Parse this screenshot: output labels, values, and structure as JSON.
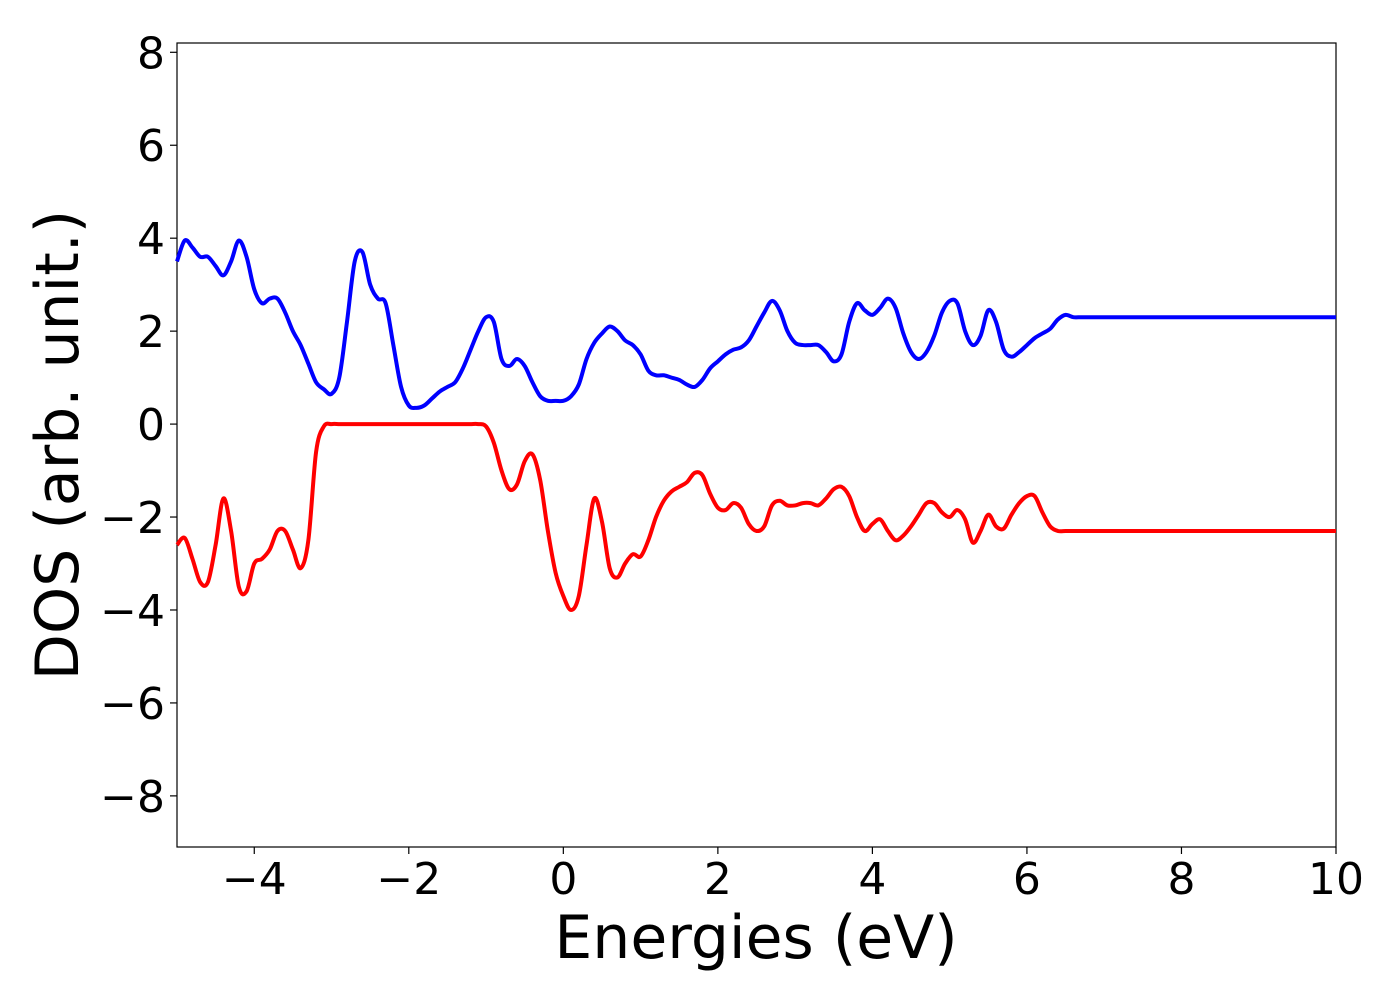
{
  "chart_data": {
    "type": "line",
    "title": "",
    "xlabel": "Energies (eV)",
    "ylabel": "DOS (arb. unit.)",
    "xlim": [
      -5,
      10
    ],
    "ylim": [
      -9.1,
      8.2
    ],
    "xticks": [
      -4,
      -2,
      0,
      2,
      4,
      6,
      8,
      10
    ],
    "yticks": [
      -8,
      -6,
      -4,
      -2,
      0,
      2,
      4,
      6,
      8
    ],
    "grid": false,
    "legend": "none",
    "series": [
      {
        "color": "#0000ff",
        "x": [
          -5.0,
          -4.9,
          -4.8,
          -4.7,
          -4.6,
          -4.5,
          -4.4,
          -4.3,
          -4.2,
          -4.1,
          -4.0,
          -3.9,
          -3.8,
          -3.7,
          -3.6,
          -3.5,
          -3.4,
          -3.3,
          -3.2,
          -3.1,
          -3.0,
          -2.9,
          -2.8,
          -2.7,
          -2.6,
          -2.5,
          -2.4,
          -2.3,
          -2.2,
          -2.1,
          -2.0,
          -1.9,
          -1.8,
          -1.7,
          -1.6,
          -1.5,
          -1.4,
          -1.3,
          -1.2,
          -1.1,
          -1.0,
          -0.9,
          -0.8,
          -0.7,
          -0.6,
          -0.5,
          -0.4,
          -0.3,
          -0.2,
          -0.1,
          0.0,
          0.1,
          0.2,
          0.3,
          0.4,
          0.5,
          0.6,
          0.7,
          0.8,
          0.9,
          1.0,
          1.1,
          1.2,
          1.3,
          1.4,
          1.5,
          1.6,
          1.7,
          1.8,
          1.9,
          2.0,
          2.1,
          2.2,
          2.3,
          2.4,
          2.5,
          2.6,
          2.7,
          2.8,
          2.9,
          3.0,
          3.1,
          3.2,
          3.3,
          3.4,
          3.5,
          3.6,
          3.7,
          3.8,
          3.9,
          4.0,
          4.1,
          4.2,
          4.3,
          4.4,
          4.5,
          4.6,
          4.7,
          4.8,
          4.9,
          5.0,
          5.1,
          5.2,
          5.3,
          5.4,
          5.5,
          5.6,
          5.7,
          5.8,
          5.9,
          6.0,
          6.1,
          6.2,
          6.3,
          6.4,
          6.5,
          6.6,
          6.7,
          6.8,
          6.9,
          7.0,
          7.1,
          7.2,
          7.3,
          7.4,
          7.5,
          7.6,
          7.7,
          7.8,
          7.9,
          8.0,
          8.1,
          8.2,
          8.3,
          8.4,
          8.5,
          8.6,
          8.7,
          8.8,
          8.9,
          9.0,
          9.1,
          9.2,
          9.3,
          9.4,
          9.5,
          9.6,
          9.7,
          9.8,
          9.9,
          10.0
        ],
        "values": [
          3.5,
          3.95,
          3.8,
          3.6,
          3.6,
          3.4,
          3.2,
          3.5,
          3.95,
          3.6,
          2.9,
          2.6,
          2.7,
          2.7,
          2.4,
          2.0,
          1.7,
          1.3,
          0.9,
          0.75,
          0.65,
          1.0,
          2.2,
          3.5,
          3.7,
          3.0,
          2.7,
          2.6,
          1.7,
          0.8,
          0.4,
          0.35,
          0.4,
          0.55,
          0.7,
          0.8,
          0.9,
          1.2,
          1.6,
          2.0,
          2.3,
          2.2,
          1.4,
          1.25,
          1.4,
          1.25,
          0.9,
          0.6,
          0.5,
          0.5,
          0.5,
          0.6,
          0.85,
          1.4,
          1.75,
          1.95,
          2.1,
          2.0,
          1.8,
          1.7,
          1.5,
          1.15,
          1.05,
          1.05,
          1.0,
          0.95,
          0.85,
          0.8,
          0.95,
          1.2,
          1.35,
          1.5,
          1.6,
          1.65,
          1.8,
          2.1,
          2.4,
          2.65,
          2.45,
          2.0,
          1.75,
          1.7,
          1.7,
          1.7,
          1.55,
          1.35,
          1.5,
          2.2,
          2.6,
          2.45,
          2.35,
          2.5,
          2.7,
          2.5,
          1.95,
          1.55,
          1.4,
          1.55,
          1.9,
          2.4,
          2.65,
          2.6,
          2.0,
          1.7,
          1.9,
          2.45,
          2.2,
          1.6,
          1.45,
          1.55,
          1.7,
          1.85,
          1.95,
          2.05,
          2.25,
          2.35,
          2.3,
          2.3,
          2.3,
          2.3,
          2.3,
          2.3,
          2.3,
          2.3,
          2.3,
          2.3,
          2.3,
          2.3,
          2.3,
          2.3,
          2.3,
          2.3,
          2.3,
          2.3,
          2.3,
          2.3,
          2.3,
          2.3,
          2.3,
          2.3,
          2.3,
          2.3,
          2.3,
          2.3,
          2.3,
          2.3,
          2.3,
          2.3,
          2.3,
          2.3,
          2.3
        ]
      },
      {
        "color": "#ff0000",
        "x": [
          -5.0,
          -4.9,
          -4.8,
          -4.7,
          -4.6,
          -4.5,
          -4.4,
          -4.3,
          -4.2,
          -4.1,
          -4.0,
          -3.9,
          -3.8,
          -3.7,
          -3.6,
          -3.5,
          -3.4,
          -3.3,
          -3.2,
          -3.1,
          -3.0,
          -2.9,
          -2.8,
          -2.7,
          -2.6,
          -2.5,
          -2.4,
          -2.3,
          -2.2,
          -2.1,
          -2.0,
          -1.9,
          -1.8,
          -1.7,
          -1.6,
          -1.5,
          -1.4,
          -1.3,
          -1.2,
          -1.1,
          -1.0,
          -0.9,
          -0.8,
          -0.7,
          -0.6,
          -0.5,
          -0.4,
          -0.3,
          -0.2,
          -0.1,
          0.0,
          0.1,
          0.2,
          0.3,
          0.4,
          0.5,
          0.6,
          0.7,
          0.8,
          0.9,
          1.0,
          1.1,
          1.2,
          1.3,
          1.4,
          1.5,
          1.6,
          1.7,
          1.8,
          1.9,
          2.0,
          2.1,
          2.2,
          2.3,
          2.4,
          2.5,
          2.6,
          2.7,
          2.8,
          2.9,
          3.0,
          3.1,
          3.2,
          3.3,
          3.4,
          3.5,
          3.6,
          3.7,
          3.8,
          3.9,
          4.0,
          4.1,
          4.2,
          4.3,
          4.4,
          4.5,
          4.6,
          4.7,
          4.8,
          4.9,
          5.0,
          5.1,
          5.2,
          5.3,
          5.4,
          5.5,
          5.6,
          5.7,
          5.8,
          5.9,
          6.0,
          6.1,
          6.2,
          6.3,
          6.4,
          6.5,
          6.6,
          6.7,
          6.8,
          6.9,
          7.0,
          7.1,
          7.2,
          7.3,
          7.4,
          7.5,
          7.6,
          7.7,
          7.8,
          7.9,
          8.0,
          8.1,
          8.2,
          8.3,
          8.4,
          8.5,
          8.6,
          8.7,
          8.8,
          8.9,
          9.0,
          9.1,
          9.2,
          9.3,
          9.4,
          9.5,
          9.6,
          9.7,
          9.8,
          9.9,
          10.0
        ],
        "values": [
          -2.6,
          -2.45,
          -2.9,
          -3.4,
          -3.4,
          -2.6,
          -1.6,
          -2.3,
          -3.5,
          -3.6,
          -3.0,
          -2.9,
          -2.7,
          -2.3,
          -2.3,
          -2.7,
          -3.1,
          -2.5,
          -0.6,
          -0.05,
          0.0,
          0.0,
          0.0,
          0.0,
          0.0,
          0.0,
          0.0,
          0.0,
          0.0,
          0.0,
          0.0,
          0.0,
          0.0,
          0.0,
          0.0,
          0.0,
          0.0,
          0.0,
          0.0,
          0.0,
          -0.05,
          -0.4,
          -1.0,
          -1.4,
          -1.3,
          -0.8,
          -0.65,
          -1.2,
          -2.3,
          -3.2,
          -3.7,
          -4.0,
          -3.7,
          -2.6,
          -1.6,
          -2.1,
          -3.1,
          -3.3,
          -3.0,
          -2.8,
          -2.85,
          -2.5,
          -2.0,
          -1.65,
          -1.45,
          -1.35,
          -1.25,
          -1.05,
          -1.1,
          -1.5,
          -1.8,
          -1.85,
          -1.7,
          -1.8,
          -2.15,
          -2.3,
          -2.2,
          -1.75,
          -1.65,
          -1.75,
          -1.75,
          -1.7,
          -1.7,
          -1.75,
          -1.6,
          -1.4,
          -1.35,
          -1.55,
          -2.0,
          -2.3,
          -2.15,
          -2.05,
          -2.3,
          -2.5,
          -2.4,
          -2.2,
          -1.95,
          -1.7,
          -1.7,
          -1.9,
          -2.0,
          -1.85,
          -2.05,
          -2.55,
          -2.3,
          -1.95,
          -2.2,
          -2.25,
          -1.95,
          -1.7,
          -1.55,
          -1.55,
          -1.9,
          -2.2,
          -2.3,
          -2.3,
          -2.3,
          -2.3,
          -2.3,
          -2.3,
          -2.3,
          -2.3,
          -2.3,
          -2.3,
          -2.3,
          -2.3,
          -2.3,
          -2.3,
          -2.3,
          -2.3,
          -2.3,
          -2.3,
          -2.3,
          -2.3,
          -2.3,
          -2.3,
          -2.3,
          -2.3,
          -2.3,
          -2.3,
          -2.3,
          -2.3,
          -2.3,
          -2.3,
          -2.3,
          -2.3,
          -2.3,
          -2.3,
          -2.3,
          -2.3,
          -2.3
        ]
      }
    ]
  }
}
